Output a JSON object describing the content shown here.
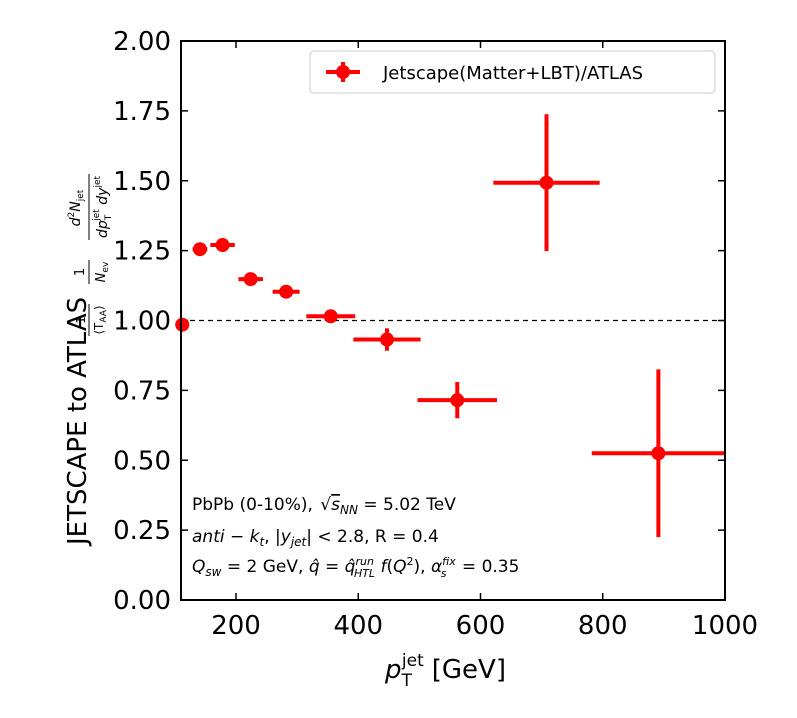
{
  "chart_data": {
    "type": "scatter",
    "xlabel": "p_T^jet [GeV]",
    "ylabel": "JETSCAPE to ATLAS",
    "xlim": [
      110,
      1000
    ],
    "ylim": [
      0.0,
      2.0
    ],
    "xticks": [
      200,
      400,
      600,
      800,
      1000
    ],
    "yticks": [
      "0.00",
      "0.25",
      "0.50",
      "0.75",
      "1.00",
      "1.25",
      "1.50",
      "1.75",
      "2.00"
    ],
    "reference_line": 1.0,
    "legend": {
      "label": "Jetscape(Matter+LBT)/ATLAS",
      "placement": "top-right"
    },
    "color": "#ff0000",
    "series": [
      {
        "name": "Jetscape(Matter+LBT)/ATLAS",
        "points": [
          {
            "x": 112,
            "y": 0.985,
            "xerr": 3,
            "yerr": 0.01
          },
          {
            "x": 141,
            "y": 1.255,
            "xerr": 12,
            "yerr": 0.015
          },
          {
            "x": 178,
            "y": 1.27,
            "xerr": 20,
            "yerr": 0.015
          },
          {
            "x": 224,
            "y": 1.148,
            "xerr": 20,
            "yerr": 0.015
          },
          {
            "x": 282,
            "y": 1.103,
            "xerr": 22,
            "yerr": 0.015
          },
          {
            "x": 355,
            "y": 1.015,
            "xerr": 40,
            "yerr": 0.02
          },
          {
            "x": 447,
            "y": 0.932,
            "xerr": 55,
            "yerr": 0.04
          },
          {
            "x": 562,
            "y": 0.715,
            "xerr": 65,
            "yerr": 0.065
          },
          {
            "x": 708,
            "y": 1.493,
            "xerr": 87,
            "yerr": 0.245
          },
          {
            "x": 891,
            "y": 0.525,
            "xerr": 109,
            "yerr": 0.3
          }
        ]
      }
    ],
    "annotations": [
      "PbPb (0-10%), √sNN = 5.02 TeV",
      "anti − kt, |yjet| < 2.8, R = 0.4",
      "Qsw = 2 GeV, q̂ = q̂HTLrun f(Q²), αsfix = 0.35"
    ]
  }
}
